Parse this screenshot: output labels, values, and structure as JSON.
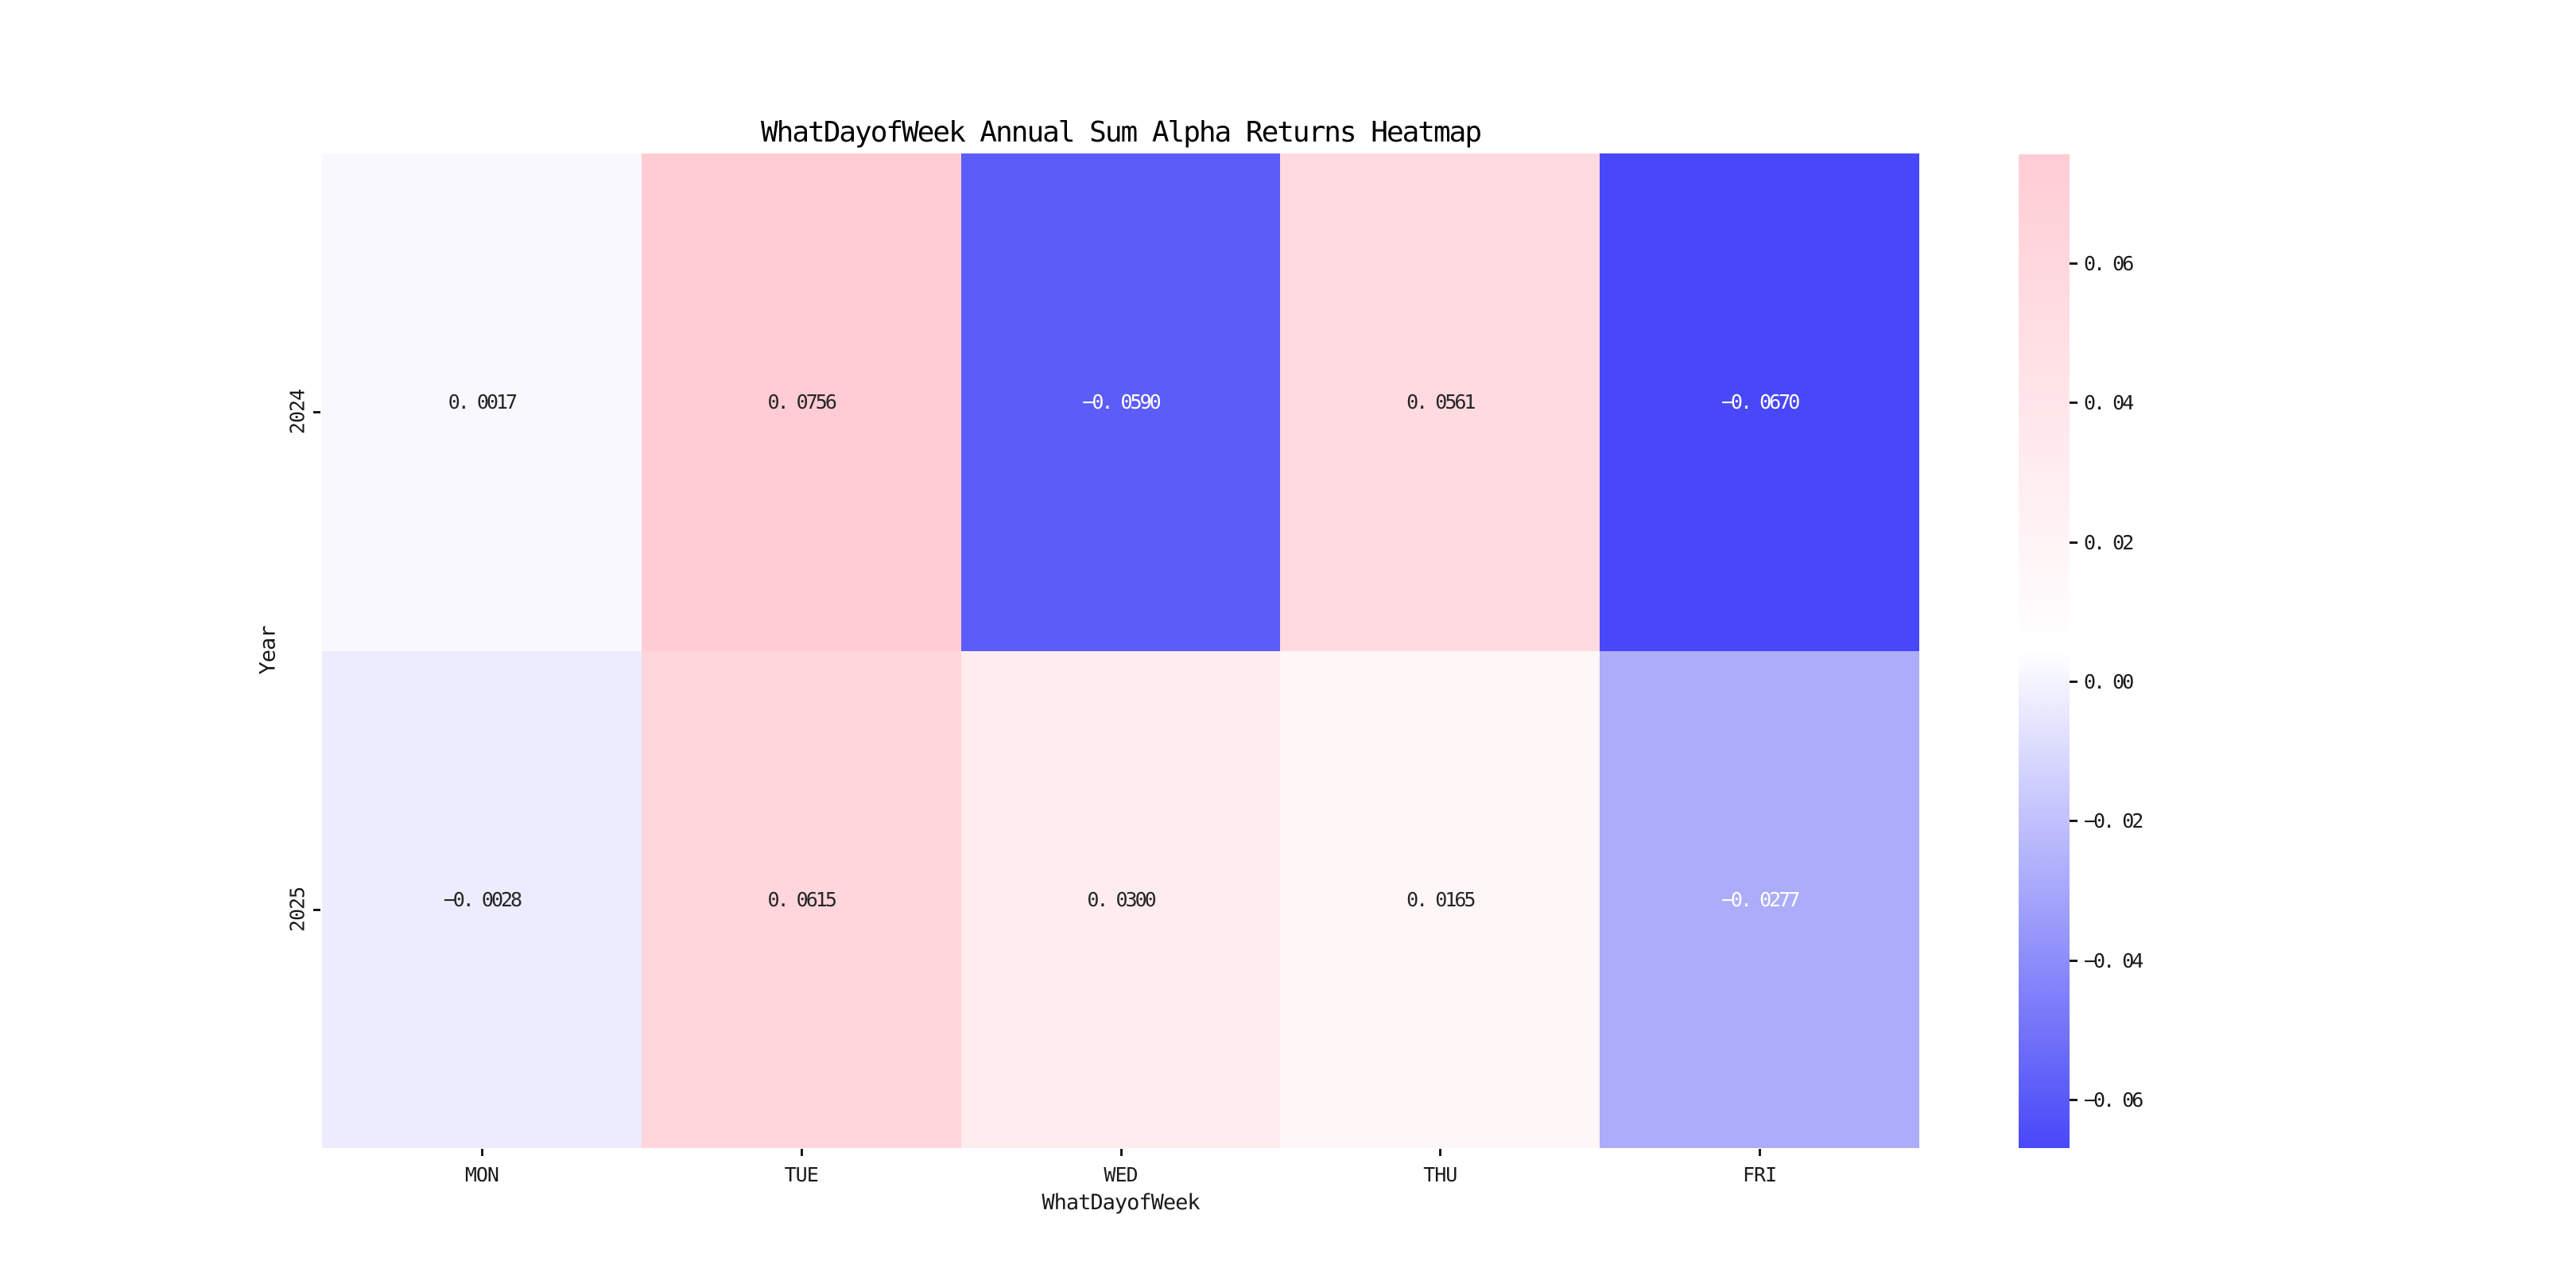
{
  "title": "WhatDayofWeek Annual Sum Alpha Returns Heatmap",
  "chart_data": {
    "type": "heatmap",
    "title": "WhatDayofWeek Annual Sum Alpha Returns Heatmap",
    "xlabel": "WhatDayofWeek",
    "ylabel": "Year",
    "columns": [
      "MON",
      "TUE",
      "WED",
      "THU",
      "FRI"
    ],
    "rows": [
      "2024",
      "2025"
    ],
    "values": [
      [
        0.0017,
        0.0756,
        -0.059,
        0.0561,
        -0.067
      ],
      [
        -0.0028,
        0.0615,
        0.03,
        0.0165,
        -0.0277
      ]
    ],
    "vmin": -0.067,
    "vmax": 0.0756,
    "grid": false,
    "legend": false,
    "colorbar": {
      "position": "right",
      "tick_values": [
        0.06,
        0.04,
        0.02,
        0.0,
        -0.02,
        -0.04,
        -0.06
      ],
      "top_color": "#ffccd4",
      "mid_color": "#ffffff",
      "bottom_color": "#4848f8"
    }
  },
  "axis": {
    "xlabel": "WhatDayofWeek",
    "ylabel": "Year",
    "x_tick_labels": [
      "MON",
      "TUE",
      "WED",
      "THU",
      "FRI"
    ],
    "y_tick_labels": [
      "2024",
      "2025"
    ]
  },
  "cells": [
    {
      "row": "2024",
      "col": "MON",
      "display": "0. 0017",
      "style": "background:#f8f8fe;color:#262626"
    },
    {
      "row": "2024",
      "col": "TUE",
      "display": "0. 0756",
      "style": "background:#ffccd4;color:#262626"
    },
    {
      "row": "2024",
      "col": "WED",
      "display": "−0. 0590",
      "style": "background:#5c5cf8;color:#ffffff"
    },
    {
      "row": "2024",
      "col": "THU",
      "display": "0. 0561",
      "style": "background:#ffdae0;color:#262626"
    },
    {
      "row": "2024",
      "col": "FRI",
      "display": "−0. 0670",
      "style": "background:#4848f8;color:#ffffff"
    },
    {
      "row": "2025",
      "col": "MON",
      "display": "−0. 0028",
      "style": "background:#ececfe;color:#262626"
    },
    {
      "row": "2025",
      "col": "TUE",
      "display": "0. 0615",
      "style": "background:#ffd6dc;color:#262626"
    },
    {
      "row": "2025",
      "col": "WED",
      "display": "0. 0300",
      "style": "background:#ffecef;color:#262626"
    },
    {
      "row": "2025",
      "col": "THU",
      "display": "0. 0165",
      "style": "background:#fff6f8;color:#262626"
    },
    {
      "row": "2025",
      "col": "FRI",
      "display": "−0. 0277",
      "style": "background:#acacfb;color:#ffffff"
    }
  ],
  "colorbar_style": "background:linear-gradient(to bottom, #ffccd4 0%, #ffffff 50%, #4848f8 100%)",
  "colorbar_ticks": [
    {
      "label": "0. 06",
      "style": "top:137px;left:64px"
    },
    {
      "label": "0. 04",
      "style": "top:312px;left:64px"
    },
    {
      "label": "0. 02",
      "style": "top:488px;left:64px"
    },
    {
      "label": "0. 00",
      "style": "top:663px;left:64px"
    },
    {
      "label": "−0. 02",
      "style": "top:838px;left:64px"
    },
    {
      "label": "−0. 04",
      "style": "top:1014px;left:64px"
    },
    {
      "label": "−0. 06",
      "style": "top:1189px;left:64px"
    }
  ]
}
